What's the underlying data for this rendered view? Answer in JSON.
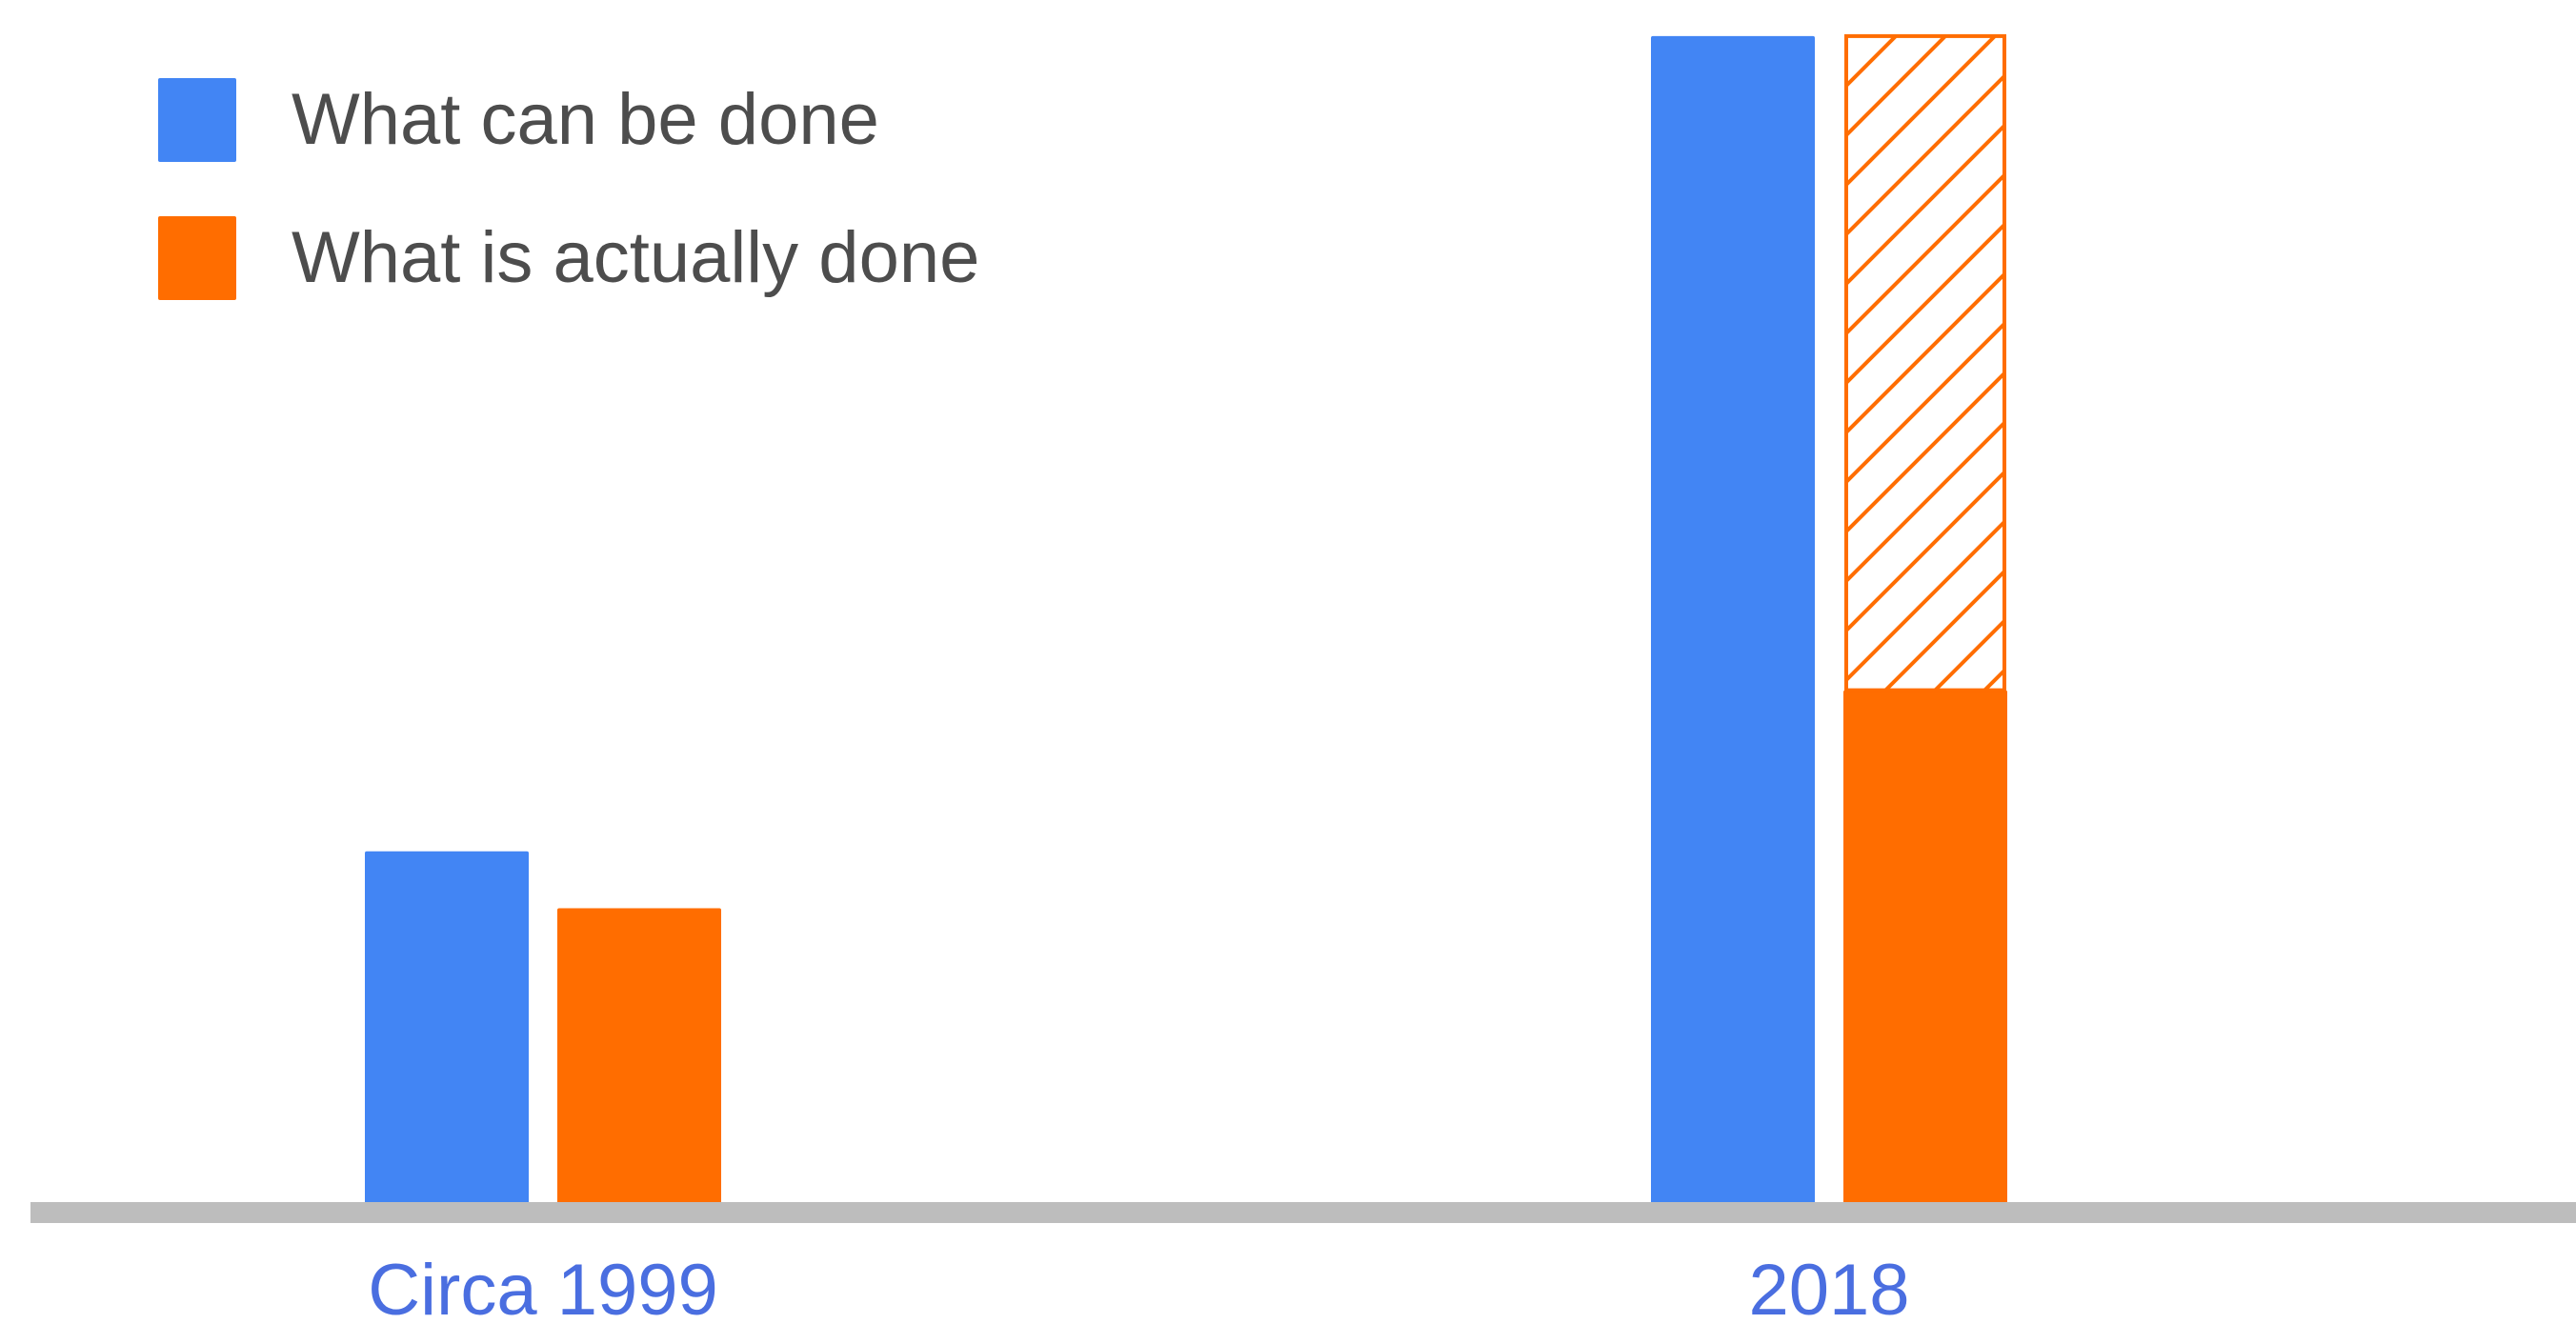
{
  "chart_data": {
    "type": "bar",
    "categories": [
      "Circa 1999",
      "2018"
    ],
    "series": [
      {
        "name": "What can be done",
        "values": [
          38,
          124
        ],
        "color": "#4285F4",
        "style": "solid"
      },
      {
        "name": "What is actually done",
        "values": [
          32,
          55
        ],
        "color": "#FF6D00",
        "style": "solid"
      }
    ],
    "unrealized_gap": {
      "category": "2018",
      "series": "What is actually done",
      "from": 55,
      "to": 124,
      "color": "#FF6D00",
      "style": "hatched-outline"
    },
    "title": "",
    "xlabel": "",
    "ylabel": "",
    "ylim": [
      0,
      126
    ],
    "grid": false,
    "y_axis_visible": false,
    "baseline_color": "#BDBDBD",
    "category_label_color": "#4A6EE0",
    "legend_text_color": "#4D4D4D",
    "legend_position": "top-left"
  }
}
